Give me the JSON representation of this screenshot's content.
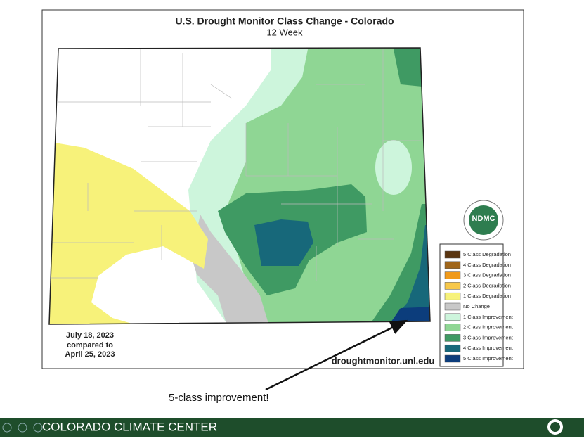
{
  "header": {
    "title": "U.S. Drought Monitor Class Change - Colorado",
    "subtitle": "12 Week"
  },
  "dates": [
    "July 18, 2023",
    "compared to",
    "April 25, 2023"
  ],
  "source": "droughtmonitor.unl.edu",
  "logo": "NDMC",
  "legend": [
    {
      "label": "5 Class Degradation",
      "color": "#5a3510"
    },
    {
      "label": "4 Class Degradation",
      "color": "#a0661a"
    },
    {
      "label": "3 Class Degradation",
      "color": "#f09a1a"
    },
    {
      "label": "2 Class Degradation",
      "color": "#f7c84a"
    },
    {
      "label": "1 Class Degradation",
      "color": "#f7f27a"
    },
    {
      "label": "No Change",
      "color": "#c8c8c8"
    },
    {
      "label": "1 Class Improvement",
      "color": "#cdf5dc"
    },
    {
      "label": "2 Class Improvement",
      "color": "#8fd694"
    },
    {
      "label": "3 Class Improvement",
      "color": "#3f9a63"
    },
    {
      "label": "4 Class Improvement",
      "color": "#17687a"
    },
    {
      "label": "5 Class Improvement",
      "color": "#0c3d7c"
    }
  ],
  "annotation": "5-class improvement!",
  "footer": {
    "brand": "COLORADO CLIMATE CENTER"
  }
}
